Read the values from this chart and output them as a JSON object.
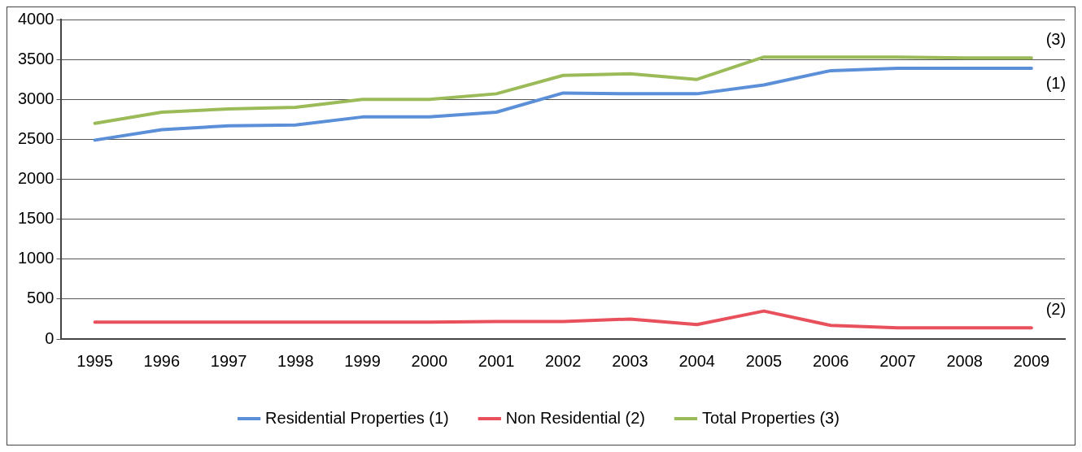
{
  "chart_data": {
    "type": "line",
    "categories": [
      "1995",
      "1996",
      "1997",
      "1998",
      "1999",
      "2000",
      "2001",
      "2002",
      "2003",
      "2004",
      "2005",
      "2006",
      "2007",
      "2008",
      "2009"
    ],
    "series": [
      {
        "name": "Residential Properties (1)",
        "color": "#5b8fd8",
        "values": [
          2490,
          2620,
          2670,
          2680,
          2780,
          2780,
          2840,
          3080,
          3070,
          3070,
          3180,
          3360,
          3390,
          3390,
          3390
        ]
      },
      {
        "name": "Non Residential (2)",
        "color": "#e8505b",
        "values": [
          210,
          210,
          210,
          210,
          210,
          210,
          220,
          220,
          250,
          180,
          350,
          170,
          140,
          140,
          140
        ]
      },
      {
        "name": "Total Properties (3)",
        "color": "#9bbb59",
        "values": [
          2700,
          2840,
          2880,
          2900,
          3000,
          3000,
          3070,
          3300,
          3320,
          3250,
          3530,
          3530,
          3530,
          3520,
          3520
        ]
      }
    ],
    "ylim": [
      0,
      4000
    ],
    "yticks": [
      0,
      500,
      1000,
      1500,
      2000,
      2500,
      3000,
      3500,
      4000
    ],
    "grid": "y",
    "legend": "bottom",
    "marker": "none",
    "line_style": "solid",
    "annotations": [
      "(1)",
      "(2)",
      "(3)"
    ]
  }
}
